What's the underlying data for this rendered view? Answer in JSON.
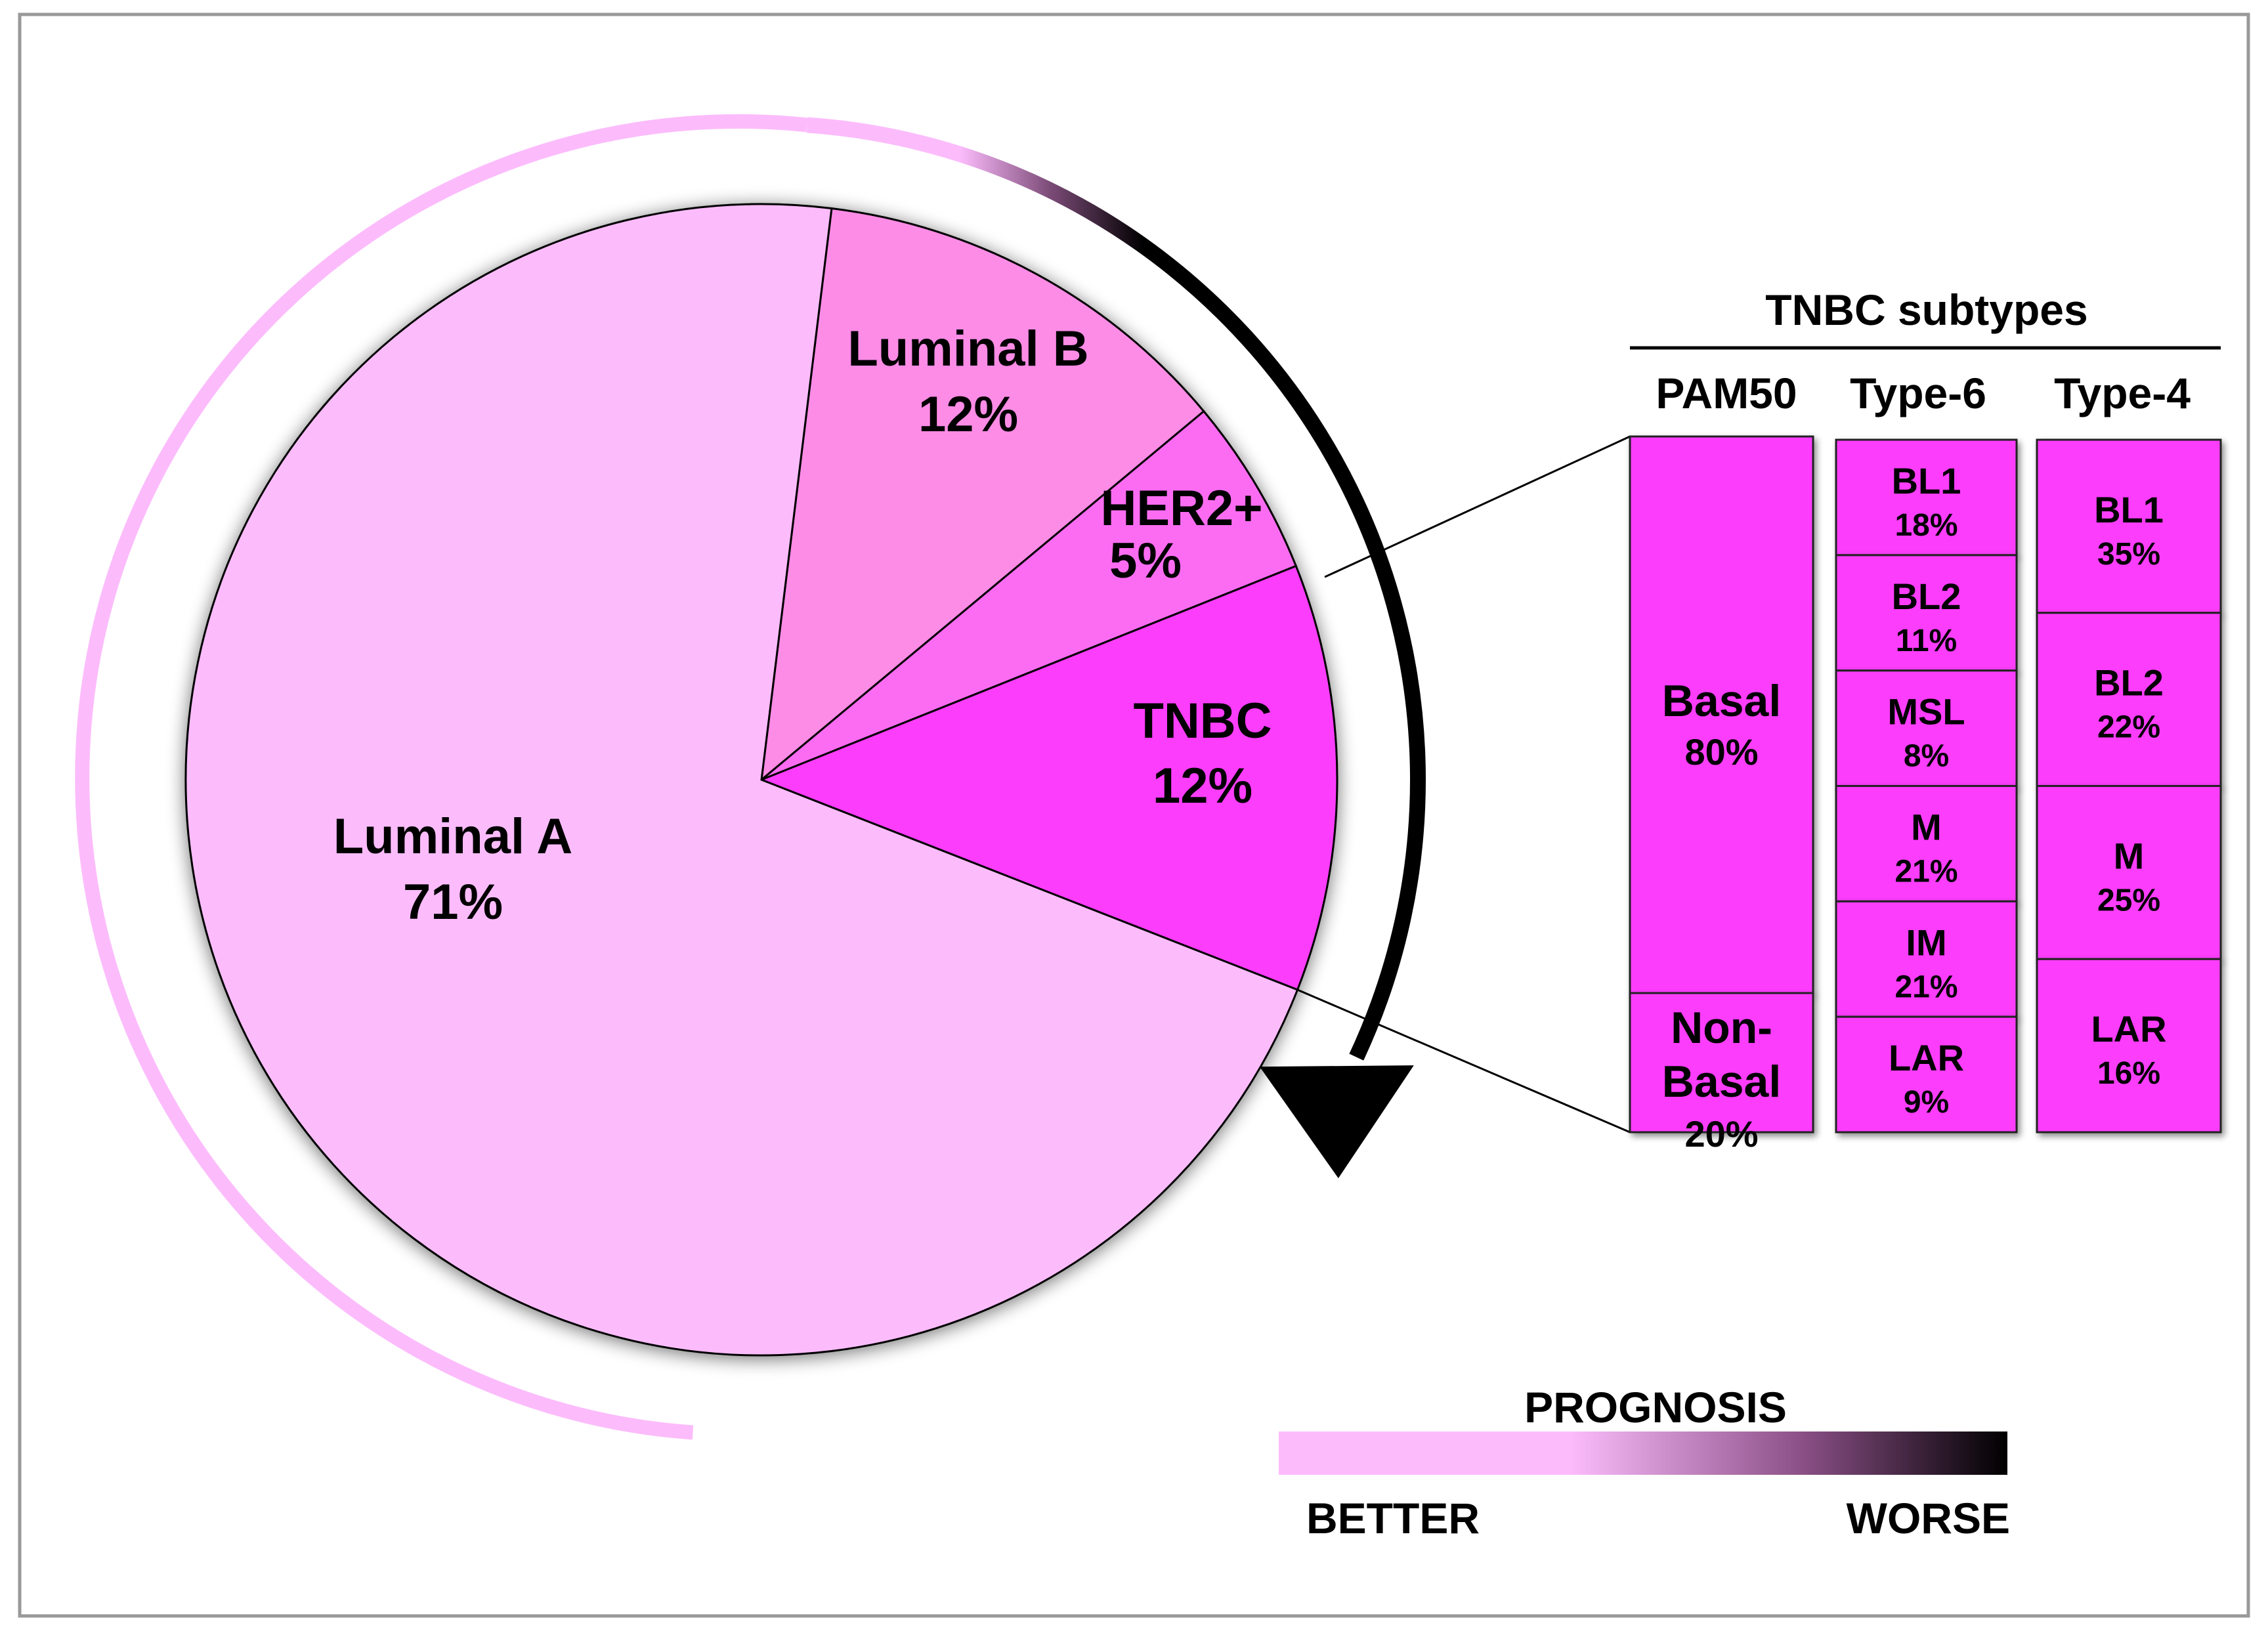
{
  "chart_data": {
    "type": "pie",
    "slices": [
      {
        "name": "Luminal A",
        "value": 71,
        "value_label": "71%",
        "color": "#fcbcfc"
      },
      {
        "name": "Luminal B",
        "value": 12,
        "value_label": "12%",
        "color": "#fc8ce6"
      },
      {
        "name": "HER2+",
        "value": 5,
        "value_label": "5%",
        "color": "#fc6cf2"
      },
      {
        "name": "TNBC",
        "value": 12,
        "value_label": "12%",
        "color": "#fc3cfc"
      }
    ],
    "tnbc_subtypes": {
      "title": "TNBC subtypes",
      "box_color": "#fc3cfc",
      "columns": [
        {
          "header": "PAM50",
          "items": [
            {
              "name": "Basal",
              "pct": "80%",
              "value": 80
            },
            {
              "name": "Non-Basal",
              "pct": "20%",
              "value": 20
            }
          ]
        },
        {
          "header": "Type-6",
          "items": [
            {
              "name": "BL1",
              "pct": "18%",
              "value": 18
            },
            {
              "name": "BL2",
              "pct": "11%",
              "value": 11
            },
            {
              "name": "MSL",
              "pct": "8%",
              "value": 8
            },
            {
              "name": "M",
              "pct": "21%",
              "value": 21
            },
            {
              "name": "IM",
              "pct": "21%",
              "value": 21
            },
            {
              "name": "LAR",
              "pct": "9%",
              "value": 9
            }
          ]
        },
        {
          "header": "Type-4",
          "items": [
            {
              "name": "BL1",
              "pct": "35%",
              "value": 35
            },
            {
              "name": "BL2",
              "pct": "22%",
              "value": 22
            },
            {
              "name": "M",
              "pct": "25%",
              "value": 25
            },
            {
              "name": "LAR",
              "pct": "16%",
              "value": 16
            }
          ]
        }
      ]
    },
    "prognosis_legend": {
      "title": "PROGNOSIS",
      "low_label": "BETTER",
      "high_label": "WORSE",
      "color_better": "#fcbcfc",
      "color_worse": "#000000"
    }
  }
}
